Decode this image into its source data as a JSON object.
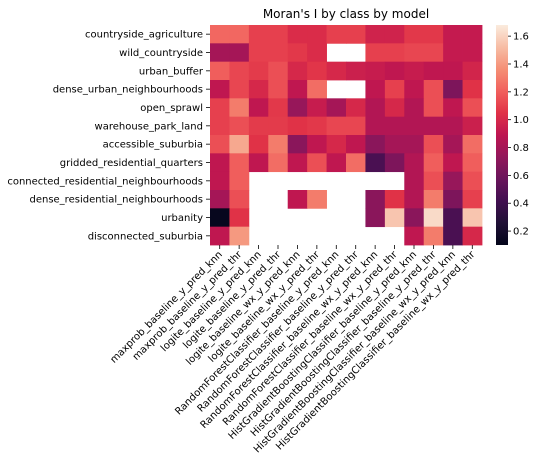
{
  "chart_data": {
    "type": "heatmap",
    "title": "Moran's I by class by model",
    "xlabel": "",
    "ylabel": "",
    "rows": [
      "countryside_agriculture",
      "wild_countryside",
      "urban_buffer",
      "dense_urban_neighbourhoods",
      "open_sprawl",
      "warehouse_park_land",
      "accessible_suburbia",
      "gridded_residential_quarters",
      "connected_residential_neighbourhoods",
      "dense_residential_neighbourhoods",
      "urbanity",
      "disconnected_suburbia"
    ],
    "columns": [
      "maxprob_baseline_y_pred_knn",
      "maxprob_baseline_y_pred_thr",
      "logite_baseline_y_pred_knn",
      "logite_baseline_y_pred_thr",
      "logite_baseline_wx_y_pred_knn",
      "logite_baseline_wx_y_pred_thr",
      "RandomForestClassifier_baseline_y_pred_knn",
      "RandomForestClassifier_baseline_y_pred_thr",
      "RandomForestClassifier_baseline_wx_y_pred_knn",
      "RandomForestClassifier_baseline_wx_y_pred_thr",
      "HistGradientBoostingClassifier_baseline_y_pred_knn",
      "HistGradientBoostingClassifier_baseline_y_pred_thr",
      "HistGradientBoostingClassifier_baseline_wx_y_pred_knn",
      "HistGradientBoostingClassifier_baseline_wx_y_pred_thr"
    ],
    "values": [
      [
        1.23,
        1.23,
        1.1,
        1.1,
        1.02,
        1.02,
        1.1,
        1.1,
        0.97,
        0.97,
        1.07,
        1.07,
        0.92,
        0.92
      ],
      [
        0.8,
        0.8,
        1.1,
        1.1,
        1.07,
        1.02,
        null,
        null,
        1.1,
        1.1,
        1.12,
        1.12,
        0.92,
        0.92
      ],
      [
        1.2,
        1.12,
        1.08,
        1.15,
        1.0,
        1.06,
        1.0,
        0.95,
        0.93,
        0.9,
        0.93,
        0.9,
        0.9,
        0.98
      ],
      [
        0.9,
        1.12,
        1.0,
        1.15,
        0.9,
        1.25,
        null,
        null,
        0.9,
        1.1,
        0.9,
        1.15,
        0.65,
        1.05
      ],
      [
        1.1,
        1.3,
        0.9,
        1.07,
        0.75,
        0.93,
        0.8,
        1.0,
        0.85,
        1.0,
        0.85,
        1.15,
        0.9,
        1.15
      ],
      [
        1.1,
        1.15,
        1.08,
        1.08,
        1.05,
        1.07,
        1.12,
        1.12,
        0.85,
        0.85,
        0.85,
        0.85,
        0.85,
        0.95
      ],
      [
        1.15,
        1.45,
        1.05,
        1.3,
        0.7,
        0.9,
        1.0,
        0.9,
        0.7,
        0.8,
        0.8,
        1.15,
        0.8,
        1.25
      ],
      [
        0.9,
        1.2,
        0.9,
        1.25,
        0.9,
        1.15,
        0.9,
        1.25,
        0.45,
        0.65,
        0.85,
        1.2,
        0.9,
        1.2
      ],
      [
        0.9,
        1.2,
        null,
        null,
        null,
        null,
        null,
        null,
        null,
        null,
        0.85,
        1.15,
        0.75,
        1.15
      ],
      [
        0.8,
        1.15,
        null,
        null,
        0.9,
        1.3,
        null,
        null,
        0.7,
        1.05,
        0.85,
        1.3,
        0.65,
        1.1
      ],
      [
        0.12,
        1.05,
        null,
        null,
        null,
        null,
        null,
        null,
        0.7,
        1.55,
        0.7,
        1.62,
        0.45,
        1.55
      ],
      [
        0.9,
        1.4,
        null,
        null,
        null,
        null,
        null,
        null,
        null,
        null,
        0.9,
        1.3,
        0.45,
        1.0
      ]
    ],
    "colorbar": {
      "min": 0.1,
      "max": 1.68,
      "ticks": [
        0.2,
        0.4,
        0.6,
        0.8,
        1.0,
        1.2,
        1.4,
        1.6
      ],
      "colormap": "rocket"
    }
  }
}
